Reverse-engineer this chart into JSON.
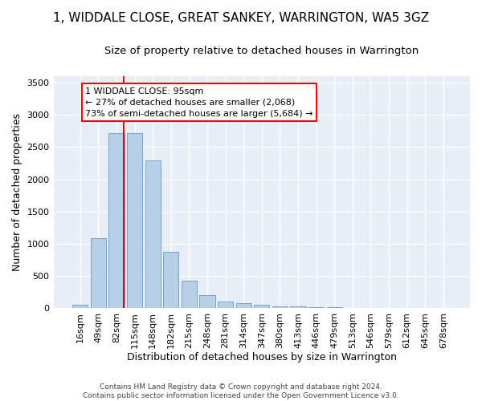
{
  "title": "1, WIDDALE CLOSE, GREAT SANKEY, WARRINGTON, WA5 3GZ",
  "subtitle": "Size of property relative to detached houses in Warrington",
  "xlabel": "Distribution of detached houses by size in Warrington",
  "ylabel": "Number of detached properties",
  "categories": [
    "16sqm",
    "49sqm",
    "82sqm",
    "115sqm",
    "148sqm",
    "182sqm",
    "215sqm",
    "248sqm",
    "281sqm",
    "314sqm",
    "347sqm",
    "380sqm",
    "413sqm",
    "446sqm",
    "479sqm",
    "513sqm",
    "546sqm",
    "579sqm",
    "612sqm",
    "645sqm",
    "678sqm"
  ],
  "values": [
    50,
    1090,
    2720,
    2720,
    2290,
    870,
    420,
    200,
    105,
    75,
    50,
    30,
    20,
    15,
    10,
    5,
    5,
    3,
    2,
    1,
    0
  ],
  "bar_color": "#b8cfe8",
  "bar_edge_color": "#6699cc",
  "annotation_text": "1 WIDDALE CLOSE: 95sqm\n← 27% of detached houses are smaller (2,068)\n73% of semi-detached houses are larger (5,684) →",
  "annotation_box_color": "white",
  "annotation_box_edge_color": "red",
  "vline_color": "red",
  "ylim": [
    0,
    3600
  ],
  "yticks": [
    0,
    500,
    1000,
    1500,
    2000,
    2500,
    3000,
    3500
  ],
  "background_color": "#e8eef7",
  "grid_color": "white",
  "footer": "Contains HM Land Registry data © Crown copyright and database right 2024.\nContains public sector information licensed under the Open Government Licence v3.0.",
  "title_fontsize": 11,
  "subtitle_fontsize": 9.5,
  "ylabel_fontsize": 9,
  "xlabel_fontsize": 9,
  "tick_fontsize": 8,
  "footer_fontsize": 6.5,
  "annotation_fontsize": 8
}
